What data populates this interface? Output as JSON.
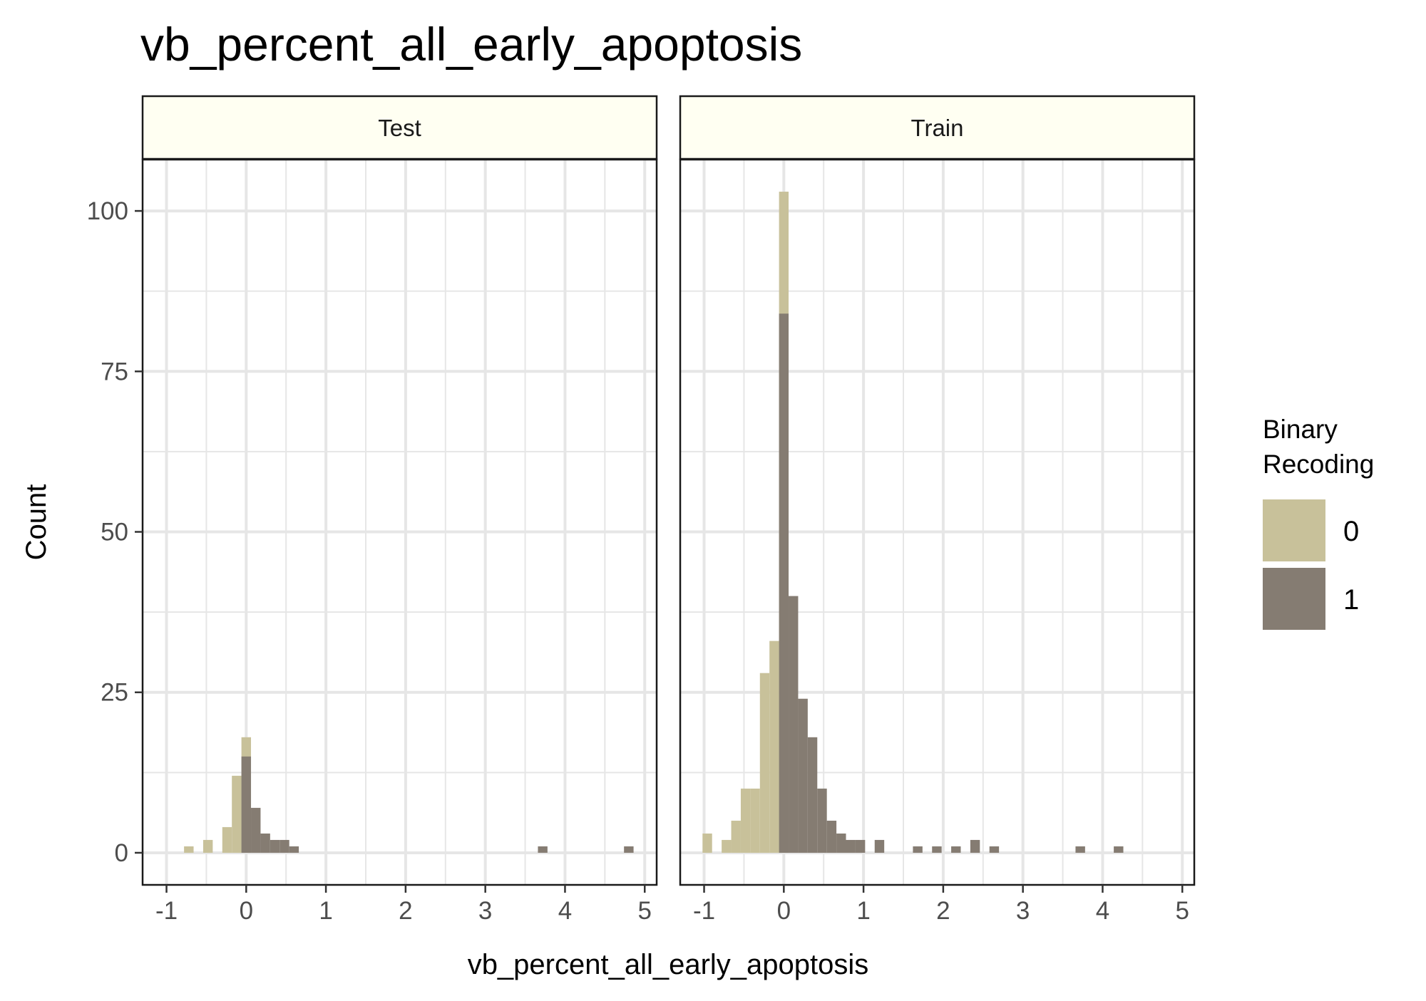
{
  "chart_data": {
    "type": "bar",
    "subtype": "faceted-histogram",
    "title": "vb_percent_all_early_apoptosis",
    "xlabel": "vb_percent_all_early_apoptosis",
    "ylabel": "Count",
    "xlim": [
      -1.3,
      5.15
    ],
    "ylim": [
      -5,
      108
    ],
    "x_ticks": [
      -1,
      0,
      1,
      2,
      3,
      4,
      5
    ],
    "x_tick_labels": [
      "-1",
      "0",
      "1",
      "2",
      "3",
      "4",
      "5"
    ],
    "y_ticks": [
      0,
      25,
      50,
      75,
      100
    ],
    "y_tick_labels": [
      "0",
      "25",
      "50",
      "75",
      "100"
    ],
    "bin_width": 0.12,
    "grid": true,
    "legend": {
      "title_lines": [
        "Binary",
        "Recoding"
      ],
      "placement": "right",
      "items": [
        {
          "label": "0",
          "color": "#c8c19a"
        },
        {
          "label": "1",
          "color": "#857c72"
        }
      ]
    },
    "colors": {
      "overlay_dark": "#857c72",
      "strip_fill": "#fffff2",
      "grid": "#e6e6e6",
      "frame": "#1a1a1a"
    },
    "facets": [
      {
        "name": "Test",
        "series": [
          {
            "name": "0",
            "bins": [
              {
                "x": -0.72,
                "count": 1
              },
              {
                "x": -0.48,
                "count": 2
              },
              {
                "x": -0.24,
                "count": 4
              },
              {
                "x": -0.12,
                "count": 12
              },
              {
                "x": 0.0,
                "count": 18
              }
            ]
          },
          {
            "name": "1",
            "bins": [
              {
                "x": 0.0,
                "count": 15
              },
              {
                "x": 0.12,
                "count": 7
              },
              {
                "x": 0.24,
                "count": 3
              },
              {
                "x": 0.36,
                "count": 2
              },
              {
                "x": 0.48,
                "count": 2
              },
              {
                "x": 0.6,
                "count": 1
              },
              {
                "x": 3.72,
                "count": 1
              },
              {
                "x": 4.8,
                "count": 1
              }
            ]
          }
        ]
      },
      {
        "name": "Train",
        "series": [
          {
            "name": "0",
            "bins": [
              {
                "x": -0.96,
                "count": 3
              },
              {
                "x": -0.72,
                "count": 2
              },
              {
                "x": -0.6,
                "count": 5
              },
              {
                "x": -0.48,
                "count": 10
              },
              {
                "x": -0.36,
                "count": 10
              },
              {
                "x": -0.24,
                "count": 28
              },
              {
                "x": -0.12,
                "count": 33
              },
              {
                "x": 0.0,
                "count": 103
              }
            ]
          },
          {
            "name": "1",
            "bins": [
              {
                "x": 0.0,
                "count": 84
              },
              {
                "x": 0.12,
                "count": 40
              },
              {
                "x": 0.24,
                "count": 24
              },
              {
                "x": 0.36,
                "count": 18
              },
              {
                "x": 0.48,
                "count": 10
              },
              {
                "x": 0.6,
                "count": 5
              },
              {
                "x": 0.72,
                "count": 3
              },
              {
                "x": 0.84,
                "count": 2
              },
              {
                "x": 0.96,
                "count": 2
              },
              {
                "x": 1.2,
                "count": 2
              },
              {
                "x": 1.68,
                "count": 1
              },
              {
                "x": 1.92,
                "count": 1
              },
              {
                "x": 2.16,
                "count": 1
              },
              {
                "x": 2.4,
                "count": 2
              },
              {
                "x": 2.64,
                "count": 1
              },
              {
                "x": 3.72,
                "count": 1
              },
              {
                "x": 4.2,
                "count": 1
              }
            ]
          }
        ]
      }
    ]
  }
}
